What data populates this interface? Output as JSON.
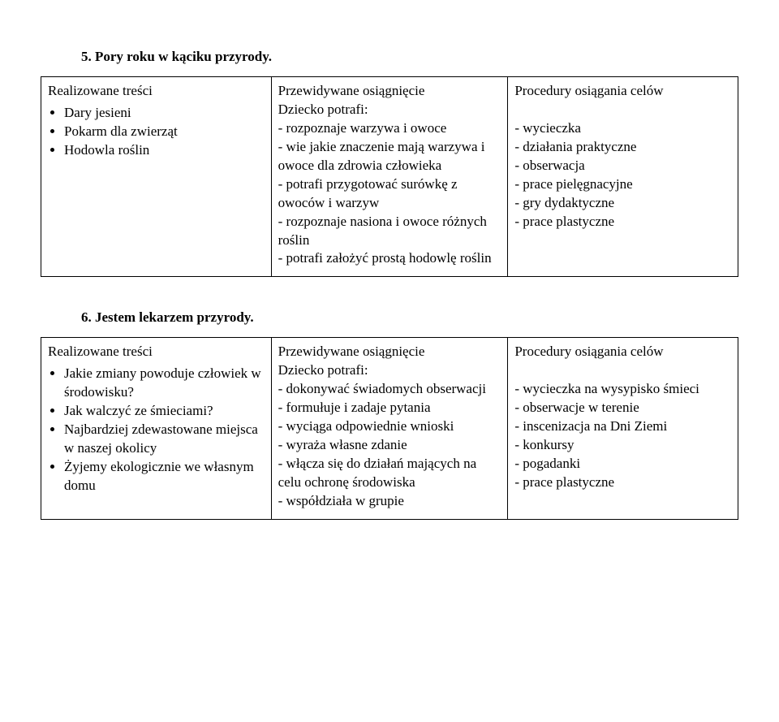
{
  "sections": [
    {
      "title": "5. Pory roku w kąciku przyrody.",
      "table": {
        "row": {
          "col1": {
            "header": "Realizowane treści",
            "bullets": [
              "Dary jesieni",
              "Pokarm dla zwierząt",
              "Hodowla roślin"
            ]
          },
          "col2": {
            "header": "Przewidywane osiągnięcie",
            "subheader": "Dziecko potrafi:",
            "lines": [
              "- rozpoznaje warzywa i owoce",
              "- wie jakie znaczenie mają warzywa i owoce dla zdrowia człowieka",
              "- potrafi przygotować surówkę z owoców i warzyw",
              "- rozpoznaje nasiona i owoce różnych roślin",
              "- potrafi założyć prostą hodowlę roślin"
            ]
          },
          "col3": {
            "header": "Procedury osiągania celów",
            "lines": [
              "- wycieczka",
              "- działania praktyczne",
              "- obserwacja",
              "- prace pielęgnacyjne",
              "- gry dydaktyczne",
              "- prace plastyczne"
            ]
          }
        }
      }
    },
    {
      "title": "6. Jestem lekarzem przyrody.",
      "table": {
        "row": {
          "col1": {
            "header": "Realizowane treści",
            "bullets": [
              "Jakie zmiany powoduje człowiek w środowisku?",
              "Jak walczyć ze śmieciami?",
              "Najbardziej zdewastowane miejsca w naszej okolicy",
              "Żyjemy ekologicznie we własnym domu"
            ]
          },
          "col2": {
            "header": "Przewidywane osiągnięcie",
            "subheader": "Dziecko potrafi:",
            "lines": [
              "- dokonywać świadomych obserwacji",
              "- formułuje i zadaje pytania",
              "- wyciąga odpowiednie wnioski",
              "- wyraża własne zdanie",
              "- włącza się do działań mających na celu ochronę środowiska",
              "- współdziała w grupie"
            ]
          },
          "col3": {
            "header": "Procedury osiągania celów",
            "lines": [
              "- wycieczka na wysypisko śmieci",
              "- obserwacje w terenie",
              "- inscenizacja na Dni Ziemi",
              "- konkursy",
              "- pogadanki",
              "- prace plastyczne"
            ]
          }
        }
      }
    }
  ]
}
